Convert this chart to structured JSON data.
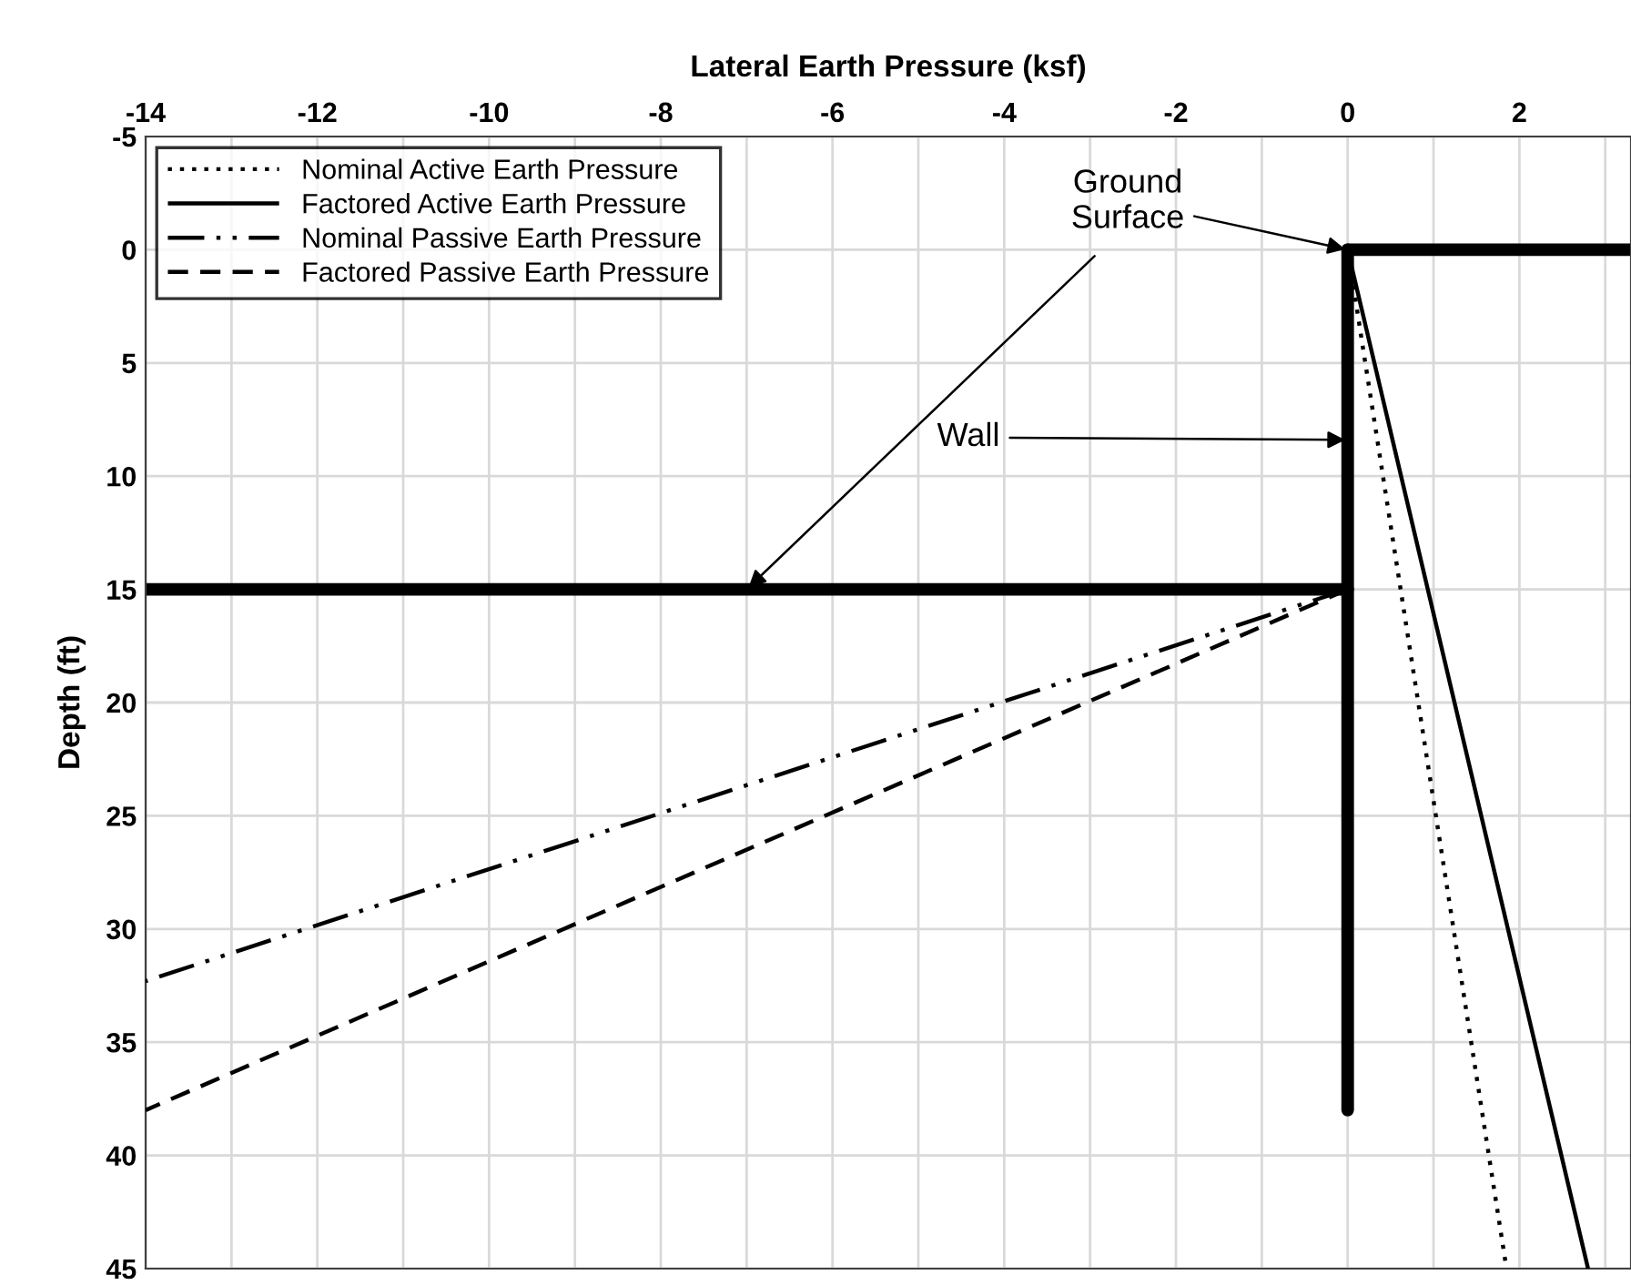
{
  "chart_data": {
    "type": "line",
    "xlabel": "Lateral Earth Pressure (ksf)",
    "ylabel": "Depth (ft)",
    "xlim": [
      -14,
      3.3
    ],
    "ylim": [
      45,
      -5
    ],
    "xticks": [
      -14,
      {
        "value": -13,
        "label": null
      },
      -12,
      {
        "value": -11,
        "label": null
      },
      -10,
      {
        "value": -9,
        "label": null
      },
      -8,
      {
        "value": -7,
        "label": null
      },
      -6,
      {
        "value": -5,
        "label": null
      },
      -4,
      {
        "value": -3,
        "label": null
      },
      -2,
      {
        "value": -1,
        "label": null
      },
      0,
      {
        "value": 1,
        "label": null
      },
      2,
      {
        "value": 3,
        "label": null
      }
    ],
    "yticks": [
      -5,
      0,
      5,
      10,
      15,
      20,
      25,
      30,
      35,
      40,
      45
    ],
    "grid": true,
    "legend": "top left",
    "series": [
      {
        "name": "Nominal Active Earth Pressure",
        "color": "#000000",
        "line_style": "dotted",
        "x": [
          0,
          1.85
        ],
        "values": [
          0,
          45
        ]
      },
      {
        "name": "Factored Active Earth Pressure",
        "color": "#000000",
        "line_style": "solid",
        "x": [
          0,
          2.8
        ],
        "values": [
          0,
          45
        ]
      },
      {
        "name": "Nominal Passive Earth Pressure",
        "color": "#000000",
        "line_style": "dashdot",
        "x": [
          0,
          -14
        ],
        "values": [
          15,
          32.3
        ]
      },
      {
        "name": "Factored Passive Earth Pressure",
        "color": "#000000",
        "line_style": "dashed",
        "x": [
          0,
          -14
        ],
        "values": [
          15,
          38
        ]
      },
      {
        "color": "#000000",
        "line_style": "solid",
        "x": [
          0,
          0
        ],
        "values": [
          0,
          38
        ]
      },
      {
        "color": "#000000",
        "line_style": "solid",
        "x": [
          0,
          3.3
        ],
        "values": [
          0,
          0
        ]
      },
      {
        "color": "#000000",
        "line_style": "solid",
        "x": [
          -14,
          0
        ],
        "values": [
          15,
          15
        ]
      }
    ],
    "annotations": [
      {
        "text": "Ground Surface",
        "x": 0,
        "y": 0
      },
      {
        "text": "Wall",
        "x": 0,
        "y": 8.4
      }
    ]
  }
}
